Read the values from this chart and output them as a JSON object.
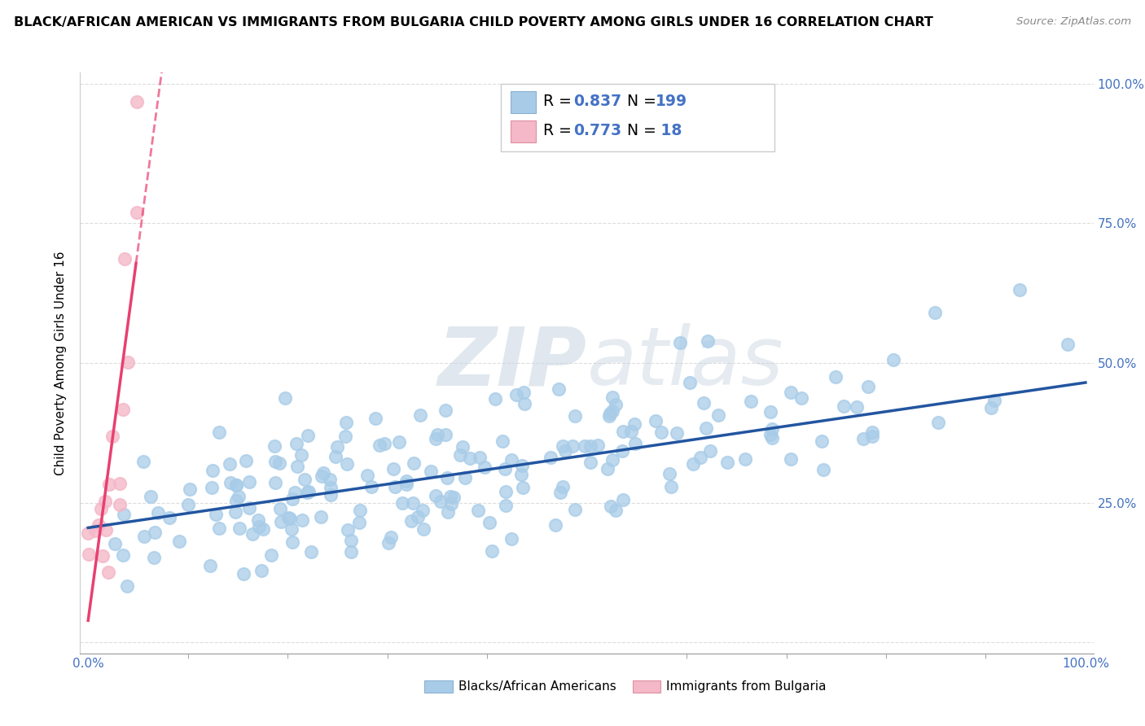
{
  "title": "BLACK/AFRICAN AMERICAN VS IMMIGRANTS FROM BULGARIA CHILD POVERTY AMONG GIRLS UNDER 16 CORRELATION CHART",
  "source": "Source: ZipAtlas.com",
  "ylabel": "Child Poverty Among Girls Under 16",
  "R_blue": 0.837,
  "N_blue": 199,
  "R_pink": 0.773,
  "N_pink": 18,
  "blue_scatter_color": "#a8cce8",
  "pink_scatter_color": "#f4b8c8",
  "blue_line_color": "#2255a0",
  "pink_line_color": "#e84070",
  "legend_label_blue": "Blacks/African Americans",
  "legend_label_pink": "Immigrants from Bulgaria",
  "watermark_zip": "ZIP",
  "watermark_atlas": "atlas",
  "background_color": "#ffffff",
  "grid_color": "#dddddd",
  "title_fontsize": 11.5,
  "tick_color": "#4472c4",
  "tick_fontsize": 11,
  "value_color": "#4472c4",
  "label_color": "#333333"
}
